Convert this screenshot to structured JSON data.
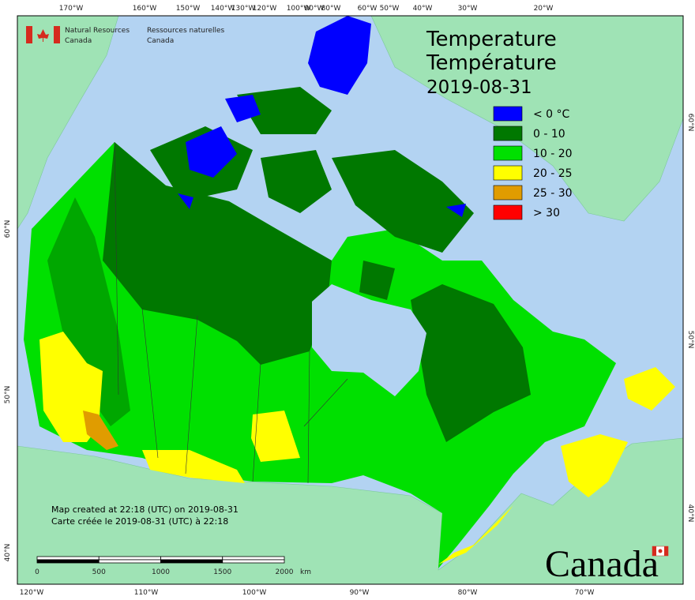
{
  "header": {
    "agency_en": [
      "Natural Resources",
      "Canada"
    ],
    "agency_fr": [
      "Ressources naturelles",
      "Canada"
    ]
  },
  "title": {
    "en": "Temperature",
    "fr": "Température",
    "date": "2019-08-31"
  },
  "legend": [
    {
      "label": "< 0 °C",
      "color": "#0000ff"
    },
    {
      "label": "0 - 10",
      "color": "#007800"
    },
    {
      "label": "10 - 20",
      "color": "#00e000"
    },
    {
      "label": "20 - 25",
      "color": "#ffff00"
    },
    {
      "label": "25 - 30",
      "color": "#e09c00"
    },
    {
      "label": "> 30",
      "color": "#ff0000"
    }
  ],
  "graticule": {
    "top": [
      "170°W",
      "160°W",
      "150°W",
      "140°W",
      "130°W",
      "120°W",
      "100°W",
      "90°W",
      "80°W",
      "60°W",
      "50°W",
      "40°W",
      "30°W",
      "20°W"
    ],
    "bottom": [
      "120°W",
      "110°W",
      "100°W",
      "90°W",
      "80°W",
      "70°W"
    ],
    "left": [
      "60°N",
      "50°N",
      "40°N"
    ],
    "right": [
      "60°N",
      "50°N",
      "40°N"
    ]
  },
  "notes": [
    "Map created at 22:18 (UTC) on 2019-08-31",
    "Carte créée le 2019-08-31 (UTC) à 22:18"
  ],
  "scale": {
    "ticks": [
      "0",
      "500",
      "1000",
      "1500",
      "2000"
    ],
    "unit": "km"
  },
  "wordmark": "Canada"
}
